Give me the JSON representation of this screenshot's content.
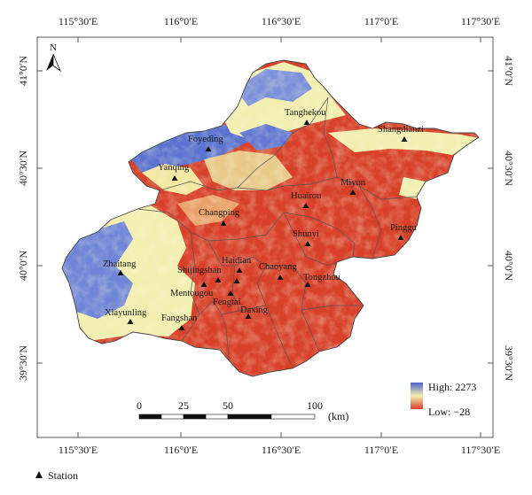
{
  "top_ticks": [
    "115°30′E",
    "116°0′E",
    "116°30′E",
    "117°0′E",
    "117°30′E"
  ],
  "bottom_ticks": [
    "115°30′E",
    "116°0′E",
    "116°30′E",
    "117°0′E",
    "117°30′E"
  ],
  "left_ticks": [
    "41°0′N",
    "40°30′N",
    "40°0′N",
    "39°30′N"
  ],
  "right_ticks": [
    "41°0′N",
    "40°30′N",
    "40°0′N",
    "39°30′N"
  ],
  "north_label": "N",
  "legend": {
    "high": "High: 2273",
    "low": "Low: −28",
    "colors": [
      "#4a62c8",
      "#f2efb0",
      "#d8402a"
    ]
  },
  "scale_bar": {
    "labels": [
      "0",
      "25",
      "50",
      "100"
    ],
    "unit": "(km)"
  },
  "station_legend": "Station",
  "places": [
    "Tanghekou",
    "Shangdianzi",
    "Foyeding",
    "Yanqing",
    "Miyun",
    "Huairou",
    "Changping",
    "Pinggu",
    "Shunyi",
    "Zhaitang",
    "Haidian",
    "Shijingshan",
    "Chaoyang",
    "Tongzhou",
    "Mentougou",
    "Fengtai",
    "Xiayunling",
    "Fangshan",
    "Daxing"
  ]
}
